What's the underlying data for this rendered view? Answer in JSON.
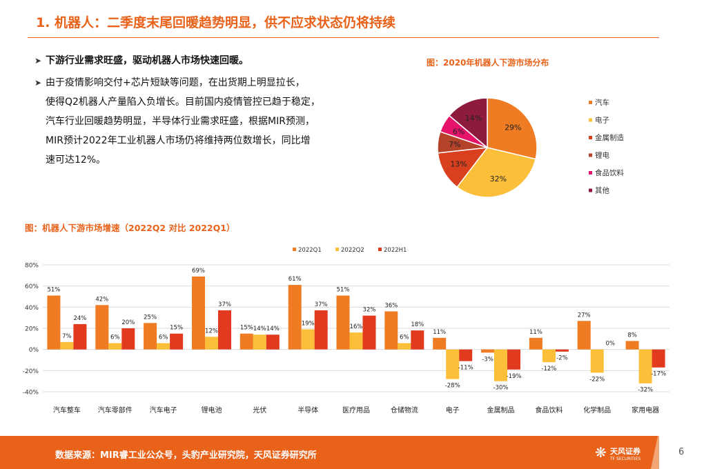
{
  "header": {
    "title": "1. 机器人：二季度末尾回暖趋势明显，供不应求状态仍将持续"
  },
  "bullets": {
    "arrow": "➤",
    "b1": "下游行业需求旺盛，驱动机器人市场快速回暖。",
    "b2_lines": [
      "由于疫情影响交付+芯片短缺等问题，在出货期上明显拉长，",
      "使得Q2机器人产量陷入负增长。目前国内疫情管控已趋于稳定，",
      "汽车行业回暖趋势明显，半导体行业需求旺盛，根据MIR预测，",
      "MIR预计2022年工业机器人市场仍将维持两位数增长，同比增",
      "速可达12%。"
    ]
  },
  "chart_data": [
    {
      "type": "pie",
      "title": "图：2020年机器人下游市场分布",
      "labels": [
        "汽车",
        "电子",
        "金属制造",
        "锂电",
        "食品饮料",
        "其他"
      ],
      "values": [
        29,
        32,
        13,
        7,
        6,
        14
      ],
      "value_labels": [
        "29%",
        "32%",
        "13%",
        "7%",
        "6%",
        "14%"
      ],
      "colors": [
        "#EF7C22",
        "#FBBF3A",
        "#D9401E",
        "#B5432A",
        "#E6136A",
        "#8E1B3E"
      ],
      "legend": "right"
    },
    {
      "type": "bar",
      "title": "图：机器人下游市场增速（2022Q2 对比 2022Q1）",
      "categories": [
        "汽车整车",
        "汽车零部件",
        "汽车电子",
        "锂电池",
        "光伏",
        "半导体",
        "医疗用品",
        "仓储物流",
        "电子",
        "金属制品",
        "食品饮料",
        "化学制品",
        "家用电器"
      ],
      "series": [
        {
          "name": "2022Q1",
          "color": "#EF7C22",
          "values": [
            51,
            42,
            25,
            69,
            15,
            61,
            51,
            36,
            11,
            -3,
            11,
            27,
            8
          ]
        },
        {
          "name": "2022Q2",
          "color": "#FBBF3A",
          "values": [
            7,
            6,
            6,
            12,
            14,
            19,
            16,
            6,
            -28,
            -30,
            -12,
            -22,
            -32
          ]
        },
        {
          "name": "2022H1",
          "color": "#E23A1E",
          "values": [
            24,
            20,
            15,
            37,
            14,
            37,
            32,
            18,
            -11,
            -19,
            -2,
            0,
            -17
          ]
        }
      ],
      "ylim": [
        -40,
        80
      ],
      "yticks": [
        -40,
        -20,
        0,
        20,
        40,
        60,
        80
      ],
      "ytick_labels": [
        "-40%",
        "-20%",
        "0%",
        "20%",
        "40%",
        "60%",
        "80%"
      ],
      "legend": "top",
      "grid": true
    }
  ],
  "footer": {
    "source": "数据来源：MIR睿工业公众号，头豹产业研究院，天风证券研究所",
    "logo_name": "天风证券",
    "logo_sub": "TF SECURITIES",
    "logo_icon": "❋",
    "page": "6"
  }
}
